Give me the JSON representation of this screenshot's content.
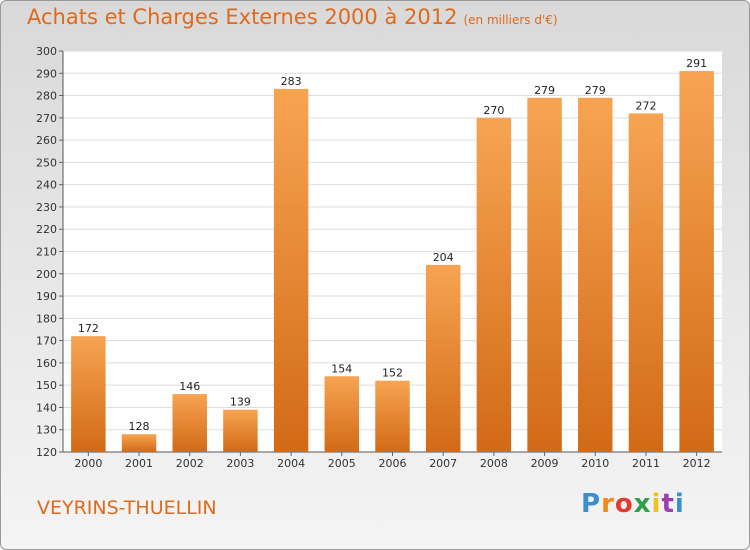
{
  "chart_data": {
    "type": "bar",
    "title": "Achats et Charges Externes 2000 à 2012",
    "unit_note": "(en milliers d'€)",
    "categories": [
      "2000",
      "2001",
      "2002",
      "2003",
      "2004",
      "2005",
      "2006",
      "2007",
      "2008",
      "2009",
      "2010",
      "2011",
      "2012"
    ],
    "values": [
      172,
      128,
      146,
      139,
      283,
      154,
      152,
      204,
      270,
      279,
      279,
      272,
      291
    ],
    "xlabel": "",
    "ylabel": "",
    "ylim": [
      120,
      300
    ],
    "yticks": [
      120,
      130,
      140,
      150,
      160,
      170,
      180,
      190,
      200,
      210,
      220,
      230,
      240,
      250,
      260,
      270,
      280,
      290,
      300
    ],
    "grid": true,
    "bar_color": "#f39a45",
    "bar_color_dark": "#d9731d"
  },
  "location_label": "VEYRINS-THUELLIN",
  "logo": {
    "p1": "Pro",
    "p2": "x",
    "p3": "iti"
  }
}
